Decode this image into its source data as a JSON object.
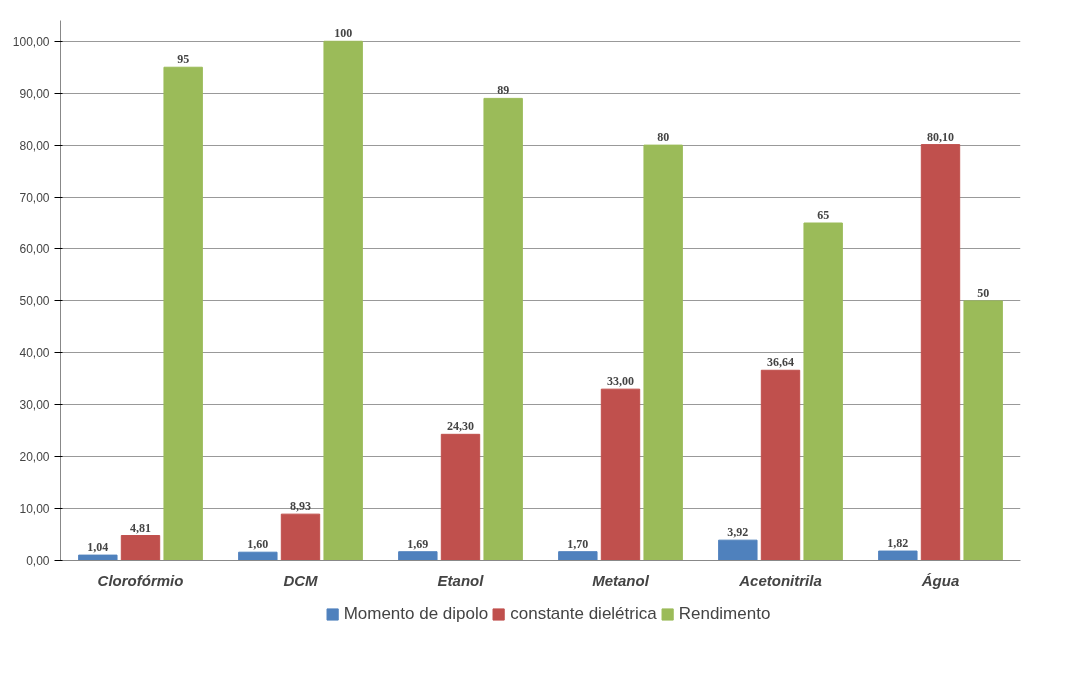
{
  "chart_data": {
    "type": "bar",
    "categories": [
      "Clorofórmio",
      "DCM",
      "Etanol",
      "Metanol",
      "Acetonitrila",
      "Água"
    ],
    "series": [
      {
        "name": "Momento de dipolo",
        "color": "#4f81bd",
        "values": [
          1.04,
          1.6,
          1.69,
          1.7,
          3.92,
          1.82
        ],
        "value_labels": [
          "1,04",
          "1,60",
          "1,69",
          "1,70",
          "3,92",
          "1,82"
        ]
      },
      {
        "name": "constante dielétrica",
        "color": "#c0504d",
        "values": [
          4.81,
          8.93,
          24.3,
          33.0,
          36.64,
          80.1
        ],
        "value_labels": [
          "4,81",
          "8,93",
          "24,30",
          "33,00",
          "36,64",
          "80,10"
        ]
      },
      {
        "name": "Rendimento",
        "color": "#9bbb59",
        "values": [
          95,
          100,
          89,
          80,
          65,
          50
        ],
        "value_labels": [
          "95",
          "100",
          "89",
          "80",
          "65",
          "50"
        ]
      }
    ],
    "ylim": [
      0,
      104
    ],
    "yticks": [
      {
        "value": 0,
        "label": "0,00"
      },
      {
        "value": 10,
        "label": "10,00"
      },
      {
        "value": 20,
        "label": "20,00"
      },
      {
        "value": 30,
        "label": "30,00"
      },
      {
        "value": 40,
        "label": "40,00"
      },
      {
        "value": 50,
        "label": "50,00"
      },
      {
        "value": 60,
        "label": "60,00"
      },
      {
        "value": 70,
        "label": "70,00"
      },
      {
        "value": 80,
        "label": "80,00"
      },
      {
        "value": 90,
        "label": "90,00"
      },
      {
        "value": 100,
        "label": "100,00"
      }
    ],
    "grid": "y",
    "legend": "bottom"
  }
}
